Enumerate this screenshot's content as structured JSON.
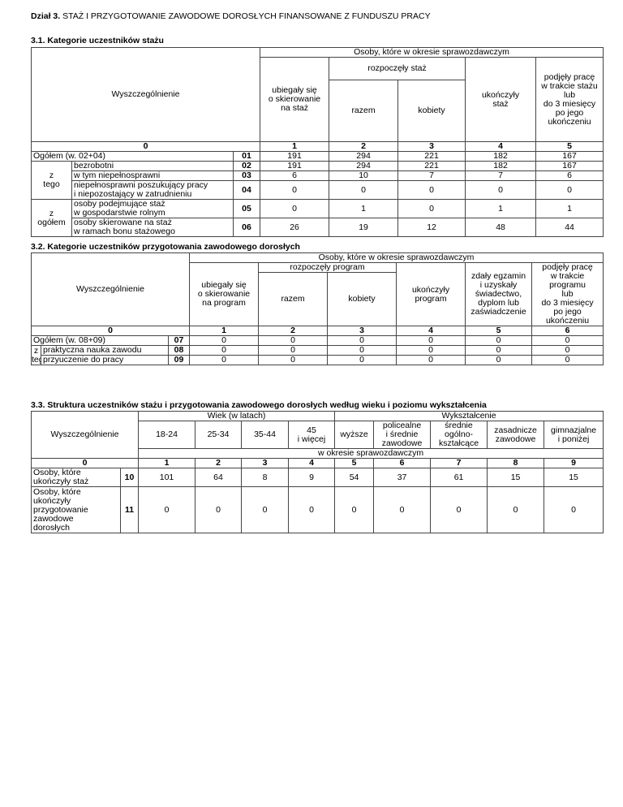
{
  "doc": {
    "section": "Dział 3.",
    "title": "STAŻ I PRZYGOTOWANIE ZAWODOWE DOROSŁYCH FINANSOWANE Z FUNDUSZU PRACY"
  },
  "t1": {
    "title": "3.1. Kategorie uczestników stażu",
    "h": {
      "spec": "Wyszczególnienie",
      "osoby": "Osoby, które w okresie sprawozdawczym",
      "c1": "ubiegały się\no skierowanie\nna staż",
      "rozp": "rozpoczęły staż",
      "razem": "razem",
      "kobiety": "kobiety",
      "c4": "ukończyły\nstaż",
      "c5": "podjęły pracę\nw trakcie stażu\nlub\ndo 3 miesięcy\npo jego\nukończeniu"
    },
    "nums": [
      "0",
      "1",
      "2",
      "3",
      "4",
      "5"
    ],
    "z_tego": "z\ntego",
    "z_ogolem": "z\nogółem",
    "rows": [
      {
        "label": "Ogółem (w. 02+04)",
        "code": "01",
        "v": [
          "191",
          "294",
          "221",
          "182",
          "167"
        ]
      },
      {
        "label": "bezrobotni",
        "code": "02",
        "v": [
          "191",
          "294",
          "221",
          "182",
          "167"
        ]
      },
      {
        "label": "w tym niepełnosprawni",
        "code": "03",
        "v": [
          "6",
          "10",
          "7",
          "7",
          "6"
        ]
      },
      {
        "label": "niepełnosprawni poszukujący pracy\ni niepozostający w zatrudnieniu",
        "code": "04",
        "v": [
          "0",
          "0",
          "0",
          "0",
          "0"
        ]
      },
      {
        "label": "osoby podejmujące staż\nw gospodarstwie rolnym",
        "code": "05",
        "v": [
          "0",
          "1",
          "0",
          "1",
          "1"
        ]
      },
      {
        "label": "osoby skierowane na staż\nw ramach bonu stażowego",
        "code": "06",
        "v": [
          "26",
          "19",
          "12",
          "48",
          "44"
        ]
      }
    ]
  },
  "t2": {
    "title": "3.2. Kategorie uczestników przygotowania zawodowego dorosłych",
    "h": {
      "spec": "Wyszczególnienie",
      "osoby": "Osoby, które w okresie sprawozdawczym",
      "c1": "ubiegały się\no skierowanie\nna program",
      "rozp": "rozpoczęły program",
      "razem": "razem",
      "kobiety": "kobiety",
      "c4": "ukończyły\nprogram",
      "c5": "zdały egzamin\ni uzyskały\nświadectwo,\ndyplom lub\nzaświadczenie",
      "c6": "podjęły pracę\nw trakcie\nprogramu\nlub\ndo 3 miesięcy\npo jego\nukończeniu"
    },
    "nums": [
      "0",
      "1",
      "2",
      "3",
      "4",
      "5",
      "6"
    ],
    "z_tego": "z\ntego",
    "rows": [
      {
        "label": "Ogółem (w. 08+09)",
        "code": "07",
        "v": [
          "0",
          "0",
          "0",
          "0",
          "0",
          "0"
        ]
      },
      {
        "label": "praktyczna nauka zawodu",
        "code": "08",
        "v": [
          "0",
          "0",
          "0",
          "0",
          "0",
          "0"
        ]
      },
      {
        "label": "przyuczenie do pracy",
        "code": "09",
        "v": [
          "0",
          "0",
          "0",
          "0",
          "0",
          "0"
        ]
      }
    ]
  },
  "t3": {
    "title": "3.3. Struktura uczestników stażu i przygotowania zawodowego dorosłych według wieku i poziomu wykształcenia",
    "h": {
      "spec": "Wyszczególnienie",
      "wiek": "Wiek (w latach)",
      "wyk": "Wykształcenie",
      "okres": "w okresie sprawozdawczym",
      "cols": [
        "18-24",
        "25-34",
        "35-44",
        "45\ni więcej",
        "wyższe",
        "policealne\ni średnie\nzawodowe",
        "średnie\nogólno-\nkształcące",
        "zasadnicze\nzawodowe",
        "gimnazjalne\ni poniżej"
      ]
    },
    "nums": [
      "0",
      "1",
      "2",
      "3",
      "4",
      "5",
      "6",
      "7",
      "8",
      "9"
    ],
    "rows": [
      {
        "label": "Osoby, które\nukończyły staż",
        "code": "10",
        "v": [
          "101",
          "64",
          "8",
          "9",
          "54",
          "37",
          "61",
          "15",
          "15"
        ]
      },
      {
        "label": "Osoby, które\nukończyły\nprzygotowanie\nzawodowe\ndorosłych",
        "code": "11",
        "v": [
          "0",
          "0",
          "0",
          "0",
          "0",
          "0",
          "0",
          "0",
          "0"
        ]
      }
    ]
  }
}
